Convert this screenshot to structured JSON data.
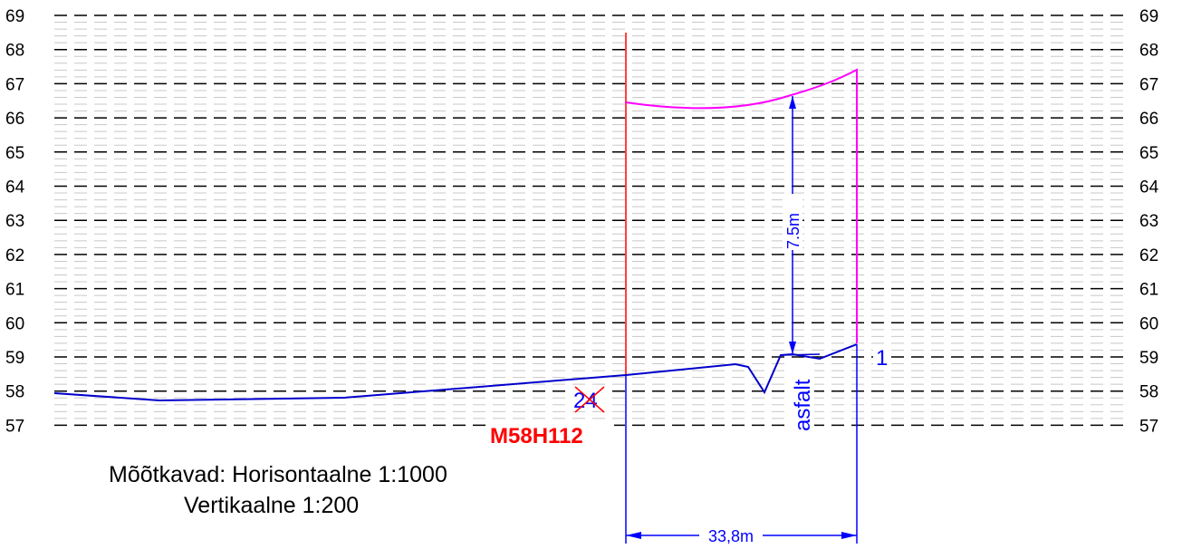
{
  "y_ticks": [
    "69",
    "68",
    "67",
    "66",
    "65",
    "64",
    "63",
    "62",
    "61",
    "60",
    "59",
    "58",
    "57"
  ],
  "annotations": {
    "height_dimension": "7.5m",
    "width_dimension": "33,8m",
    "surface_label": "asfalt",
    "point_number": "1",
    "crossed_number": "24",
    "marker_code": "M58H112"
  },
  "scale_note": {
    "line1": "Mõõtkavad: Horisontaalne 1:1000",
    "line2": "Vertikaalne 1:200"
  },
  "colors": {
    "grid": "#000000",
    "minor_grid": "#c8c8c8",
    "ground_profile": "#0000cc",
    "dimension": "#0000ff",
    "envelope": "#ff00ff",
    "marker": "#ff0000"
  }
}
